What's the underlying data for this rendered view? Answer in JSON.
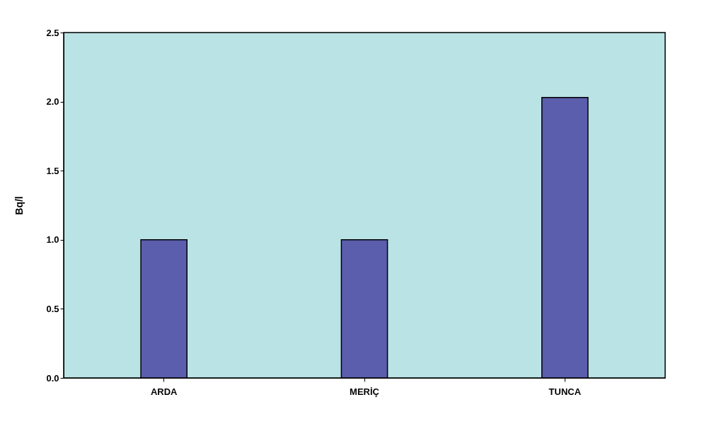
{
  "chart_data": {
    "type": "bar",
    "ylabel": "Bq/l",
    "categories": [
      "ARDA",
      "MERİÇ",
      "TUNCA"
    ],
    "values": [
      1.0,
      1.0,
      2.03
    ],
    "color": "#5b5ead",
    "ylim": [
      0,
      2.5
    ],
    "yticks": [
      {
        "value": 0,
        "label": "0.0"
      },
      {
        "value": 0.5,
        "label": "0.5"
      },
      {
        "value": 1,
        "label": "1.0"
      },
      {
        "value": 1.5,
        "label": "1.5"
      },
      {
        "value": 2,
        "label": "2.0"
      },
      {
        "value": 2.5,
        "label": "2.5"
      }
    ],
    "grid": false
  }
}
